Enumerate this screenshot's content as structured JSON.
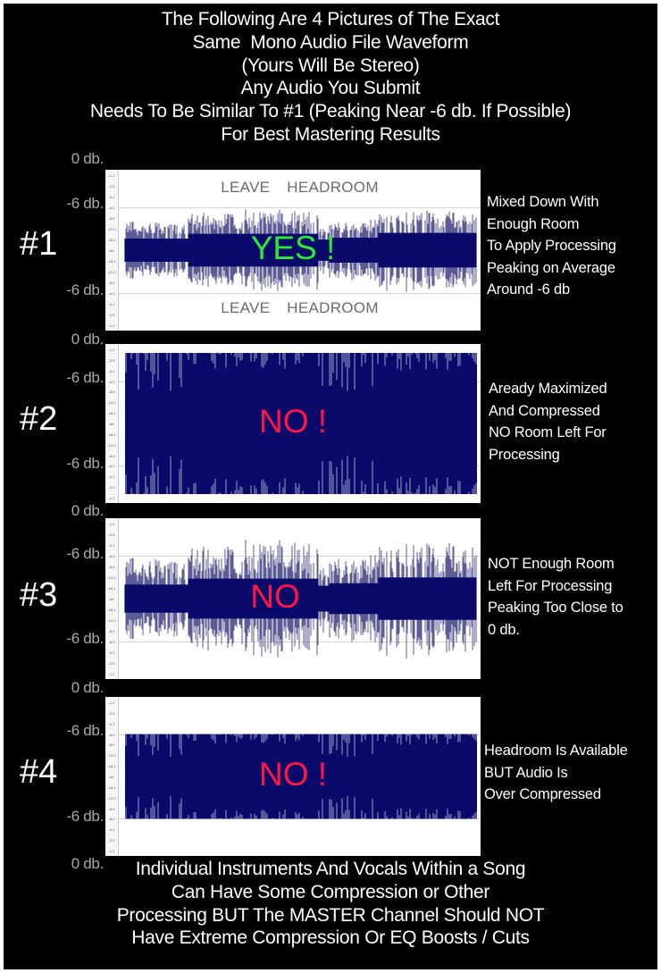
{
  "header": {
    "lines": [
      "The Following Are 4 Pictures of The Exact",
      "Same  Mono Audio File Waveform",
      "(Yours Will Be Stereo)",
      "Any Audio You Submit",
      "Needs To Be Similar To #1 (Peaking Near -6 db. If Possible)",
      "For Best Mastering Results"
    ]
  },
  "footer": {
    "lines": [
      "Individual Instruments And Vocals Within a Song",
      "Can Have Some Compression or Other",
      "Processing BUT The MASTER Channel Should NOT",
      "Have Extreme Compression Or EQ Boosts / Cuts"
    ]
  },
  "db_labels": {
    "zero": "0 db.",
    "minus_six": "-6 db."
  },
  "axis_ticks": [
    "-1.2",
    "-2.5",
    "-4.1",
    "-6.0",
    "-8.5",
    "-12.0",
    "-18.1",
    "-Inf.",
    "-18.1",
    "-12.0",
    "-8.5",
    "-6.0",
    "-4.1",
    "-2.5",
    "-1.2"
  ],
  "colors": {
    "background": "#000000",
    "waveform": "#0a0a6b",
    "yes": "#2ee83a",
    "no": "#ff1744",
    "db_label": "#a9a9a9",
    "headroom_text": "#6b6b6b"
  },
  "panels": [
    {
      "number": "#1",
      "verdict": "YES !",
      "verdict_color": "yes",
      "headroom_top": "LEAVE HEADROOM",
      "headroom_bottom": "LEAVE HEADROOM",
      "description": [
        "Mixed Down With",
        "Enough Room",
        "To Apply Processing",
        "Peaking on Average",
        "Around -6 db"
      ]
    },
    {
      "number": "#2",
      "verdict": "NO !",
      "verdict_color": "no",
      "description": [
        "Aready Maximized",
        "And Compressed",
        "NO Room Left For",
        "Processing"
      ]
    },
    {
      "number": "#3",
      "verdict": "NO",
      "verdict_color": "no",
      "description": [
        "NOT Enough Room",
        "Left For Processing",
        "Peaking Too Close to",
        "0 db."
      ]
    },
    {
      "number": "#4",
      "verdict": "NO !",
      "verdict_color": "no",
      "description": [
        "Headroom Is Available",
        "BUT Audio Is",
        "Over Compressed"
      ]
    }
  ]
}
